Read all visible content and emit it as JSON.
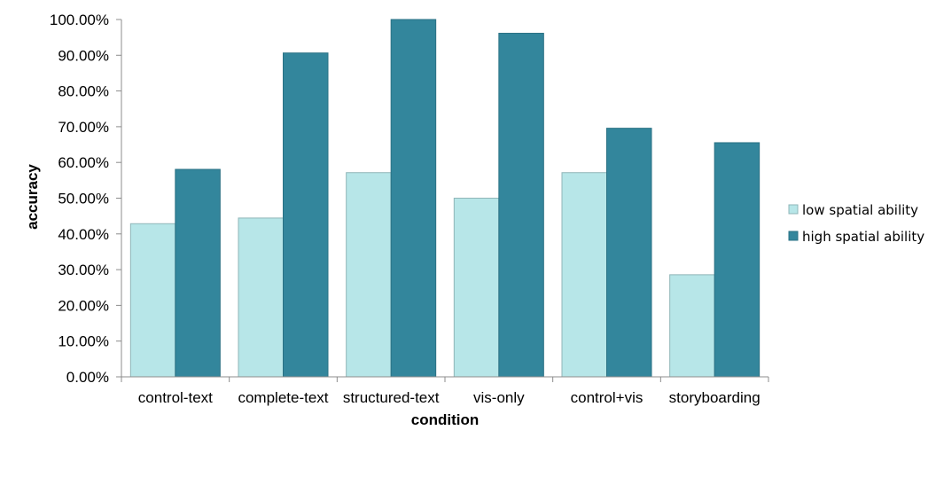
{
  "chart_data": {
    "type": "bar",
    "title": "",
    "xlabel": "condition",
    "ylabel": "accuracy",
    "categories": [
      "control-text",
      "complete-text",
      "structured-text",
      "vis-only",
      "control+vis",
      "storyboarding"
    ],
    "series": [
      {
        "name": "low spatial ability",
        "values": [
          42.86,
          44.44,
          57.14,
          50.0,
          57.14,
          28.57
        ],
        "color": "#b7e6e8"
      },
      {
        "name": "high spatial ability",
        "values": [
          58.06,
          90.63,
          100.0,
          96.15,
          69.57,
          65.52
        ],
        "color": "#33869c"
      }
    ],
    "ylim": [
      0,
      100
    ],
    "yticks": [
      "0.00%",
      "10.00%",
      "20.00%",
      "30.00%",
      "40.00%",
      "50.00%",
      "60.00%",
      "70.00%",
      "80.00%",
      "90.00%",
      "100.00%"
    ],
    "grid": false,
    "legend_position": "right"
  }
}
